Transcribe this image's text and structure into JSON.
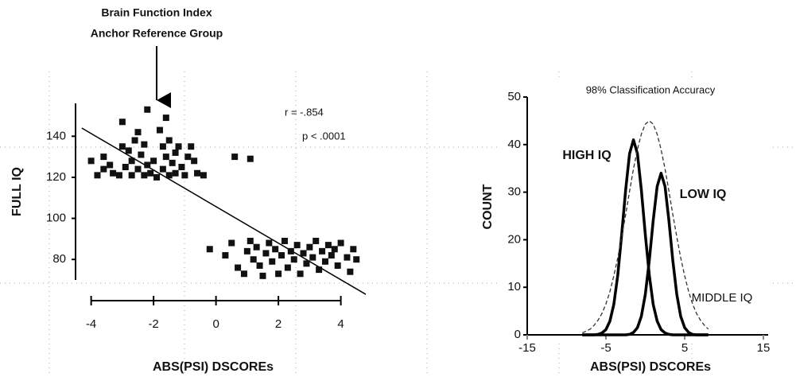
{
  "chart_data": [
    {
      "type": "scatter",
      "annotation": [
        "Brain Function Index",
        "Anchor Reference Group"
      ],
      "stats": [
        "r = -.854",
        "p < .0001"
      ],
      "xlabel": "ABS(PSI) DSCOREs",
      "ylabel": "FULL IQ",
      "xlim": [
        -4.5,
        4.8
      ],
      "ylim": [
        70,
        156
      ],
      "xticks": [
        -4,
        -2,
        0,
        2,
        4
      ],
      "yticks": [
        80,
        100,
        120,
        140
      ],
      "color": "#111111",
      "x": [
        -4,
        -3.8,
        -3.6,
        -3.6,
        -3.4,
        -3.3,
        -3.1,
        -3.0,
        -3.0,
        -2.9,
        -2.8,
        -2.7,
        -2.7,
        -2.6,
        -2.5,
        -2.5,
        -2.4,
        -2.3,
        -2.3,
        -2.2,
        -2.2,
        -2.1,
        -2.0,
        -1.9,
        -1.8,
        -1.7,
        -1.7,
        -1.6,
        -1.6,
        -1.5,
        -1.5,
        -1.4,
        -1.3,
        -1.3,
        -1.2,
        -1.1,
        -1.0,
        -0.9,
        -0.8,
        -0.7,
        -0.6,
        -0.4,
        0.6,
        1.1,
        -0.2,
        0.3,
        0.5,
        0.7,
        0.9,
        1.0,
        1.1,
        1.2,
        1.3,
        1.4,
        1.5,
        1.6,
        1.7,
        1.8,
        1.9,
        2.0,
        2.1,
        2.2,
        2.3,
        2.4,
        2.5,
        2.6,
        2.7,
        2.8,
        2.9,
        3.0,
        3.1,
        3.2,
        3.3,
        3.4,
        3.5,
        3.6,
        3.7,
        3.8,
        3.9,
        4.0,
        4.2,
        4.3,
        4.4,
        4.5
      ],
      "values": [
        128,
        121,
        124,
        130,
        126,
        122,
        121,
        147,
        135,
        125,
        133,
        121,
        128,
        138,
        142,
        124,
        131,
        121,
        136,
        153,
        126,
        122,
        128,
        120,
        143,
        135,
        124,
        149,
        130,
        121,
        138,
        127,
        132,
        122,
        135,
        125,
        121,
        130,
        135,
        128,
        122,
        121,
        130,
        129,
        85,
        82,
        88,
        76,
        73,
        84,
        89,
        80,
        86,
        77,
        72,
        83,
        88,
        79,
        85,
        73,
        82,
        89,
        76,
        84,
        80,
        87,
        73,
        83,
        78,
        86,
        81,
        89,
        75,
        84,
        79,
        87,
        82,
        85,
        77,
        88,
        81,
        74,
        85,
        80
      ],
      "fit": {
        "x": [
          -4.3,
          4.8
        ],
        "values": [
          144,
          63
        ]
      }
    },
    {
      "type": "line",
      "title": "98% Classification Accuracy",
      "xlabel": "ABS(PSI) DSCOREs",
      "ylabel": "COUNT",
      "xlim": [
        -15,
        15
      ],
      "ylim": [
        0,
        50
      ],
      "xticks": [
        -15,
        -5,
        5,
        15
      ],
      "yticks": [
        0,
        10,
        20,
        30,
        40,
        50
      ],
      "x": [
        -8,
        -7.5,
        -7,
        -6.5,
        -6,
        -5.5,
        -5,
        -4.5,
        -4,
        -3.5,
        -3,
        -2.5,
        -2,
        -1.5,
        -1,
        -0.5,
        0,
        0.5,
        1,
        1.5,
        2,
        2.5,
        3,
        3.5,
        4,
        4.5,
        5,
        5.5,
        6,
        6.5,
        7,
        7.5,
        8
      ],
      "series": [
        {
          "name": "HIGH IQ",
          "color": "#000000",
          "dashed": false,
          "values": [
            0,
            0,
            0,
            0,
            0.1,
            0.4,
            1.1,
            2.9,
            6.4,
            12.6,
            21.1,
            30.5,
            38.1,
            41,
            38.1,
            30.5,
            21.1,
            12.6,
            6.4,
            2.9,
            1.1,
            0.4,
            0.1,
            0,
            0,
            0,
            0,
            0,
            0,
            0,
            0,
            0,
            0
          ]
        },
        {
          "name": "LOW IQ",
          "color": "#000000",
          "dashed": false,
          "values": [
            0,
            0,
            0,
            0,
            0,
            0,
            0,
            0,
            0,
            0,
            0,
            0,
            0.1,
            0.5,
            1.5,
            3.9,
            8.5,
            15.6,
            24.0,
            31.2,
            34,
            31.2,
            24.0,
            15.6,
            8.5,
            3.9,
            1.5,
            0.5,
            0.1,
            0,
            0,
            0,
            0
          ]
        },
        {
          "name": "MIDDLE IQ",
          "color": "#333333",
          "dashed": true,
          "values": [
            0.4,
            0.8,
            1.2,
            2.0,
            3.1,
            4.5,
            6.5,
            9.1,
            12.4,
            16.2,
            20.6,
            25.3,
            30.2,
            34.9,
            39.0,
            42.2,
            44.3,
            45,
            44.3,
            42.2,
            39.0,
            34.9,
            30.2,
            25.3,
            20.6,
            16.2,
            12.4,
            9.1,
            6.5,
            4.5,
            3.1,
            2.0,
            1.2
          ]
        }
      ]
    }
  ]
}
